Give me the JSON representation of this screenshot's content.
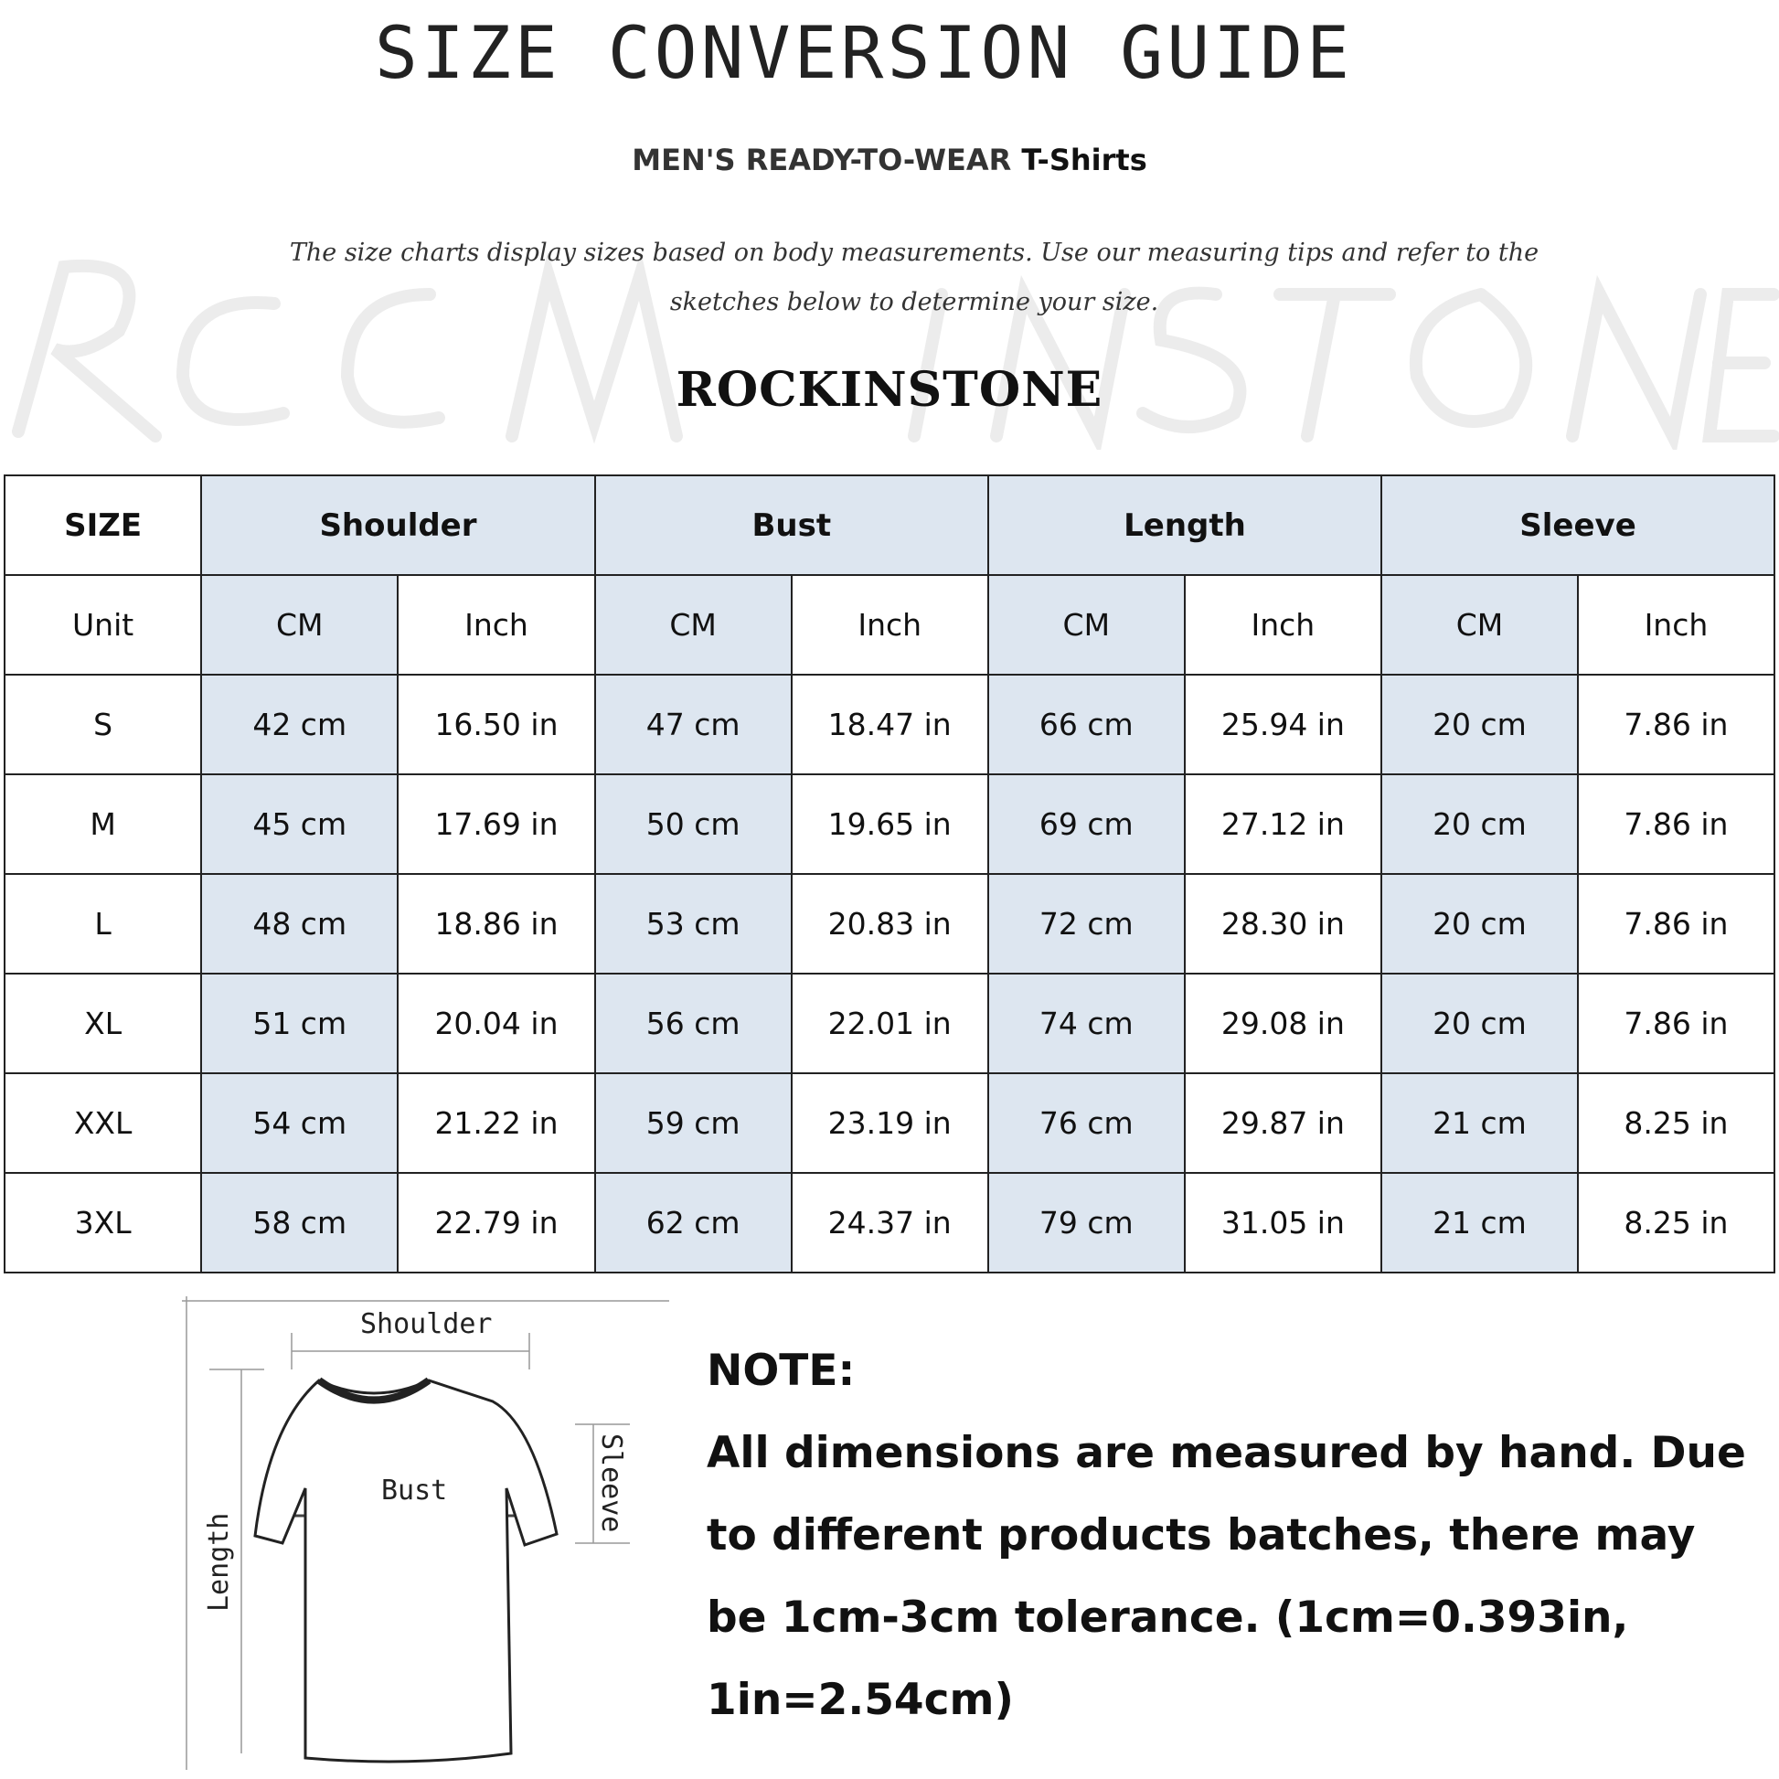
{
  "title": "SIZE CONVERSION GUIDE",
  "subtitle": {
    "main": "MEN'S READY-TO-WEAR",
    "product": "T-Shirts"
  },
  "intro": "The size charts display sizes based on body measurements. Use our measuring tips and refer to the sketches below to determine your size.",
  "watermark": "ROCK IN STONE",
  "brand": "ROCKINSTONE",
  "table": {
    "size_header": "SIZE",
    "unit_label": "Unit",
    "groups": [
      "Shoulder",
      "Bust",
      "Length",
      "Sleeve"
    ],
    "units": [
      "CM",
      "Inch"
    ],
    "rows": [
      {
        "size": "S",
        "values": [
          "42 cm",
          "16.50 in",
          "47 cm",
          "18.47  in",
          "66 cm",
          "25.94  in",
          "20 cm",
          "7.86  in"
        ]
      },
      {
        "size": "M",
        "values": [
          "45 cm",
          "17.69  in",
          "50 cm",
          "19.65  in",
          "69 cm",
          "27.12  in",
          "20 cm",
          "7.86  in"
        ]
      },
      {
        "size": "L",
        "values": [
          "48 cm",
          "18.86  in",
          "53 cm",
          "20.83  in",
          "72 cm",
          "28.30  in",
          "20 cm",
          "7.86  in"
        ]
      },
      {
        "size": "XL",
        "values": [
          "51 cm",
          "20.04  in",
          "56 cm",
          "22.01  in",
          "74 cm",
          "29.08  in",
          "20 cm",
          "7.86  in"
        ]
      },
      {
        "size": "XXL",
        "values": [
          "54 cm",
          "21.22  in",
          "59 cm",
          "23.19  in",
          "76 cm",
          "29.87  in",
          "21 cm",
          "8.25  in"
        ]
      },
      {
        "size": "3XL",
        "values": [
          "58 cm",
          "22.79  in",
          "62 cm",
          "24.37  in",
          "79 cm",
          "31.05  in",
          "21 cm",
          "8.25  in"
        ]
      }
    ]
  },
  "diagram": {
    "shoulder": "Shoulder",
    "bust": "Bust",
    "length": "Length",
    "sleeve": "Sleeve"
  },
  "note": {
    "heading": "NOTE:",
    "text": "All dimensions are measured by hand. Due to different products batches, there may be 1cm-3cm tolerance. (1cm=0.393in, 1in=2.54cm)"
  },
  "colors": {
    "header_fill": "#dde6f0",
    "border": "#222222"
  }
}
